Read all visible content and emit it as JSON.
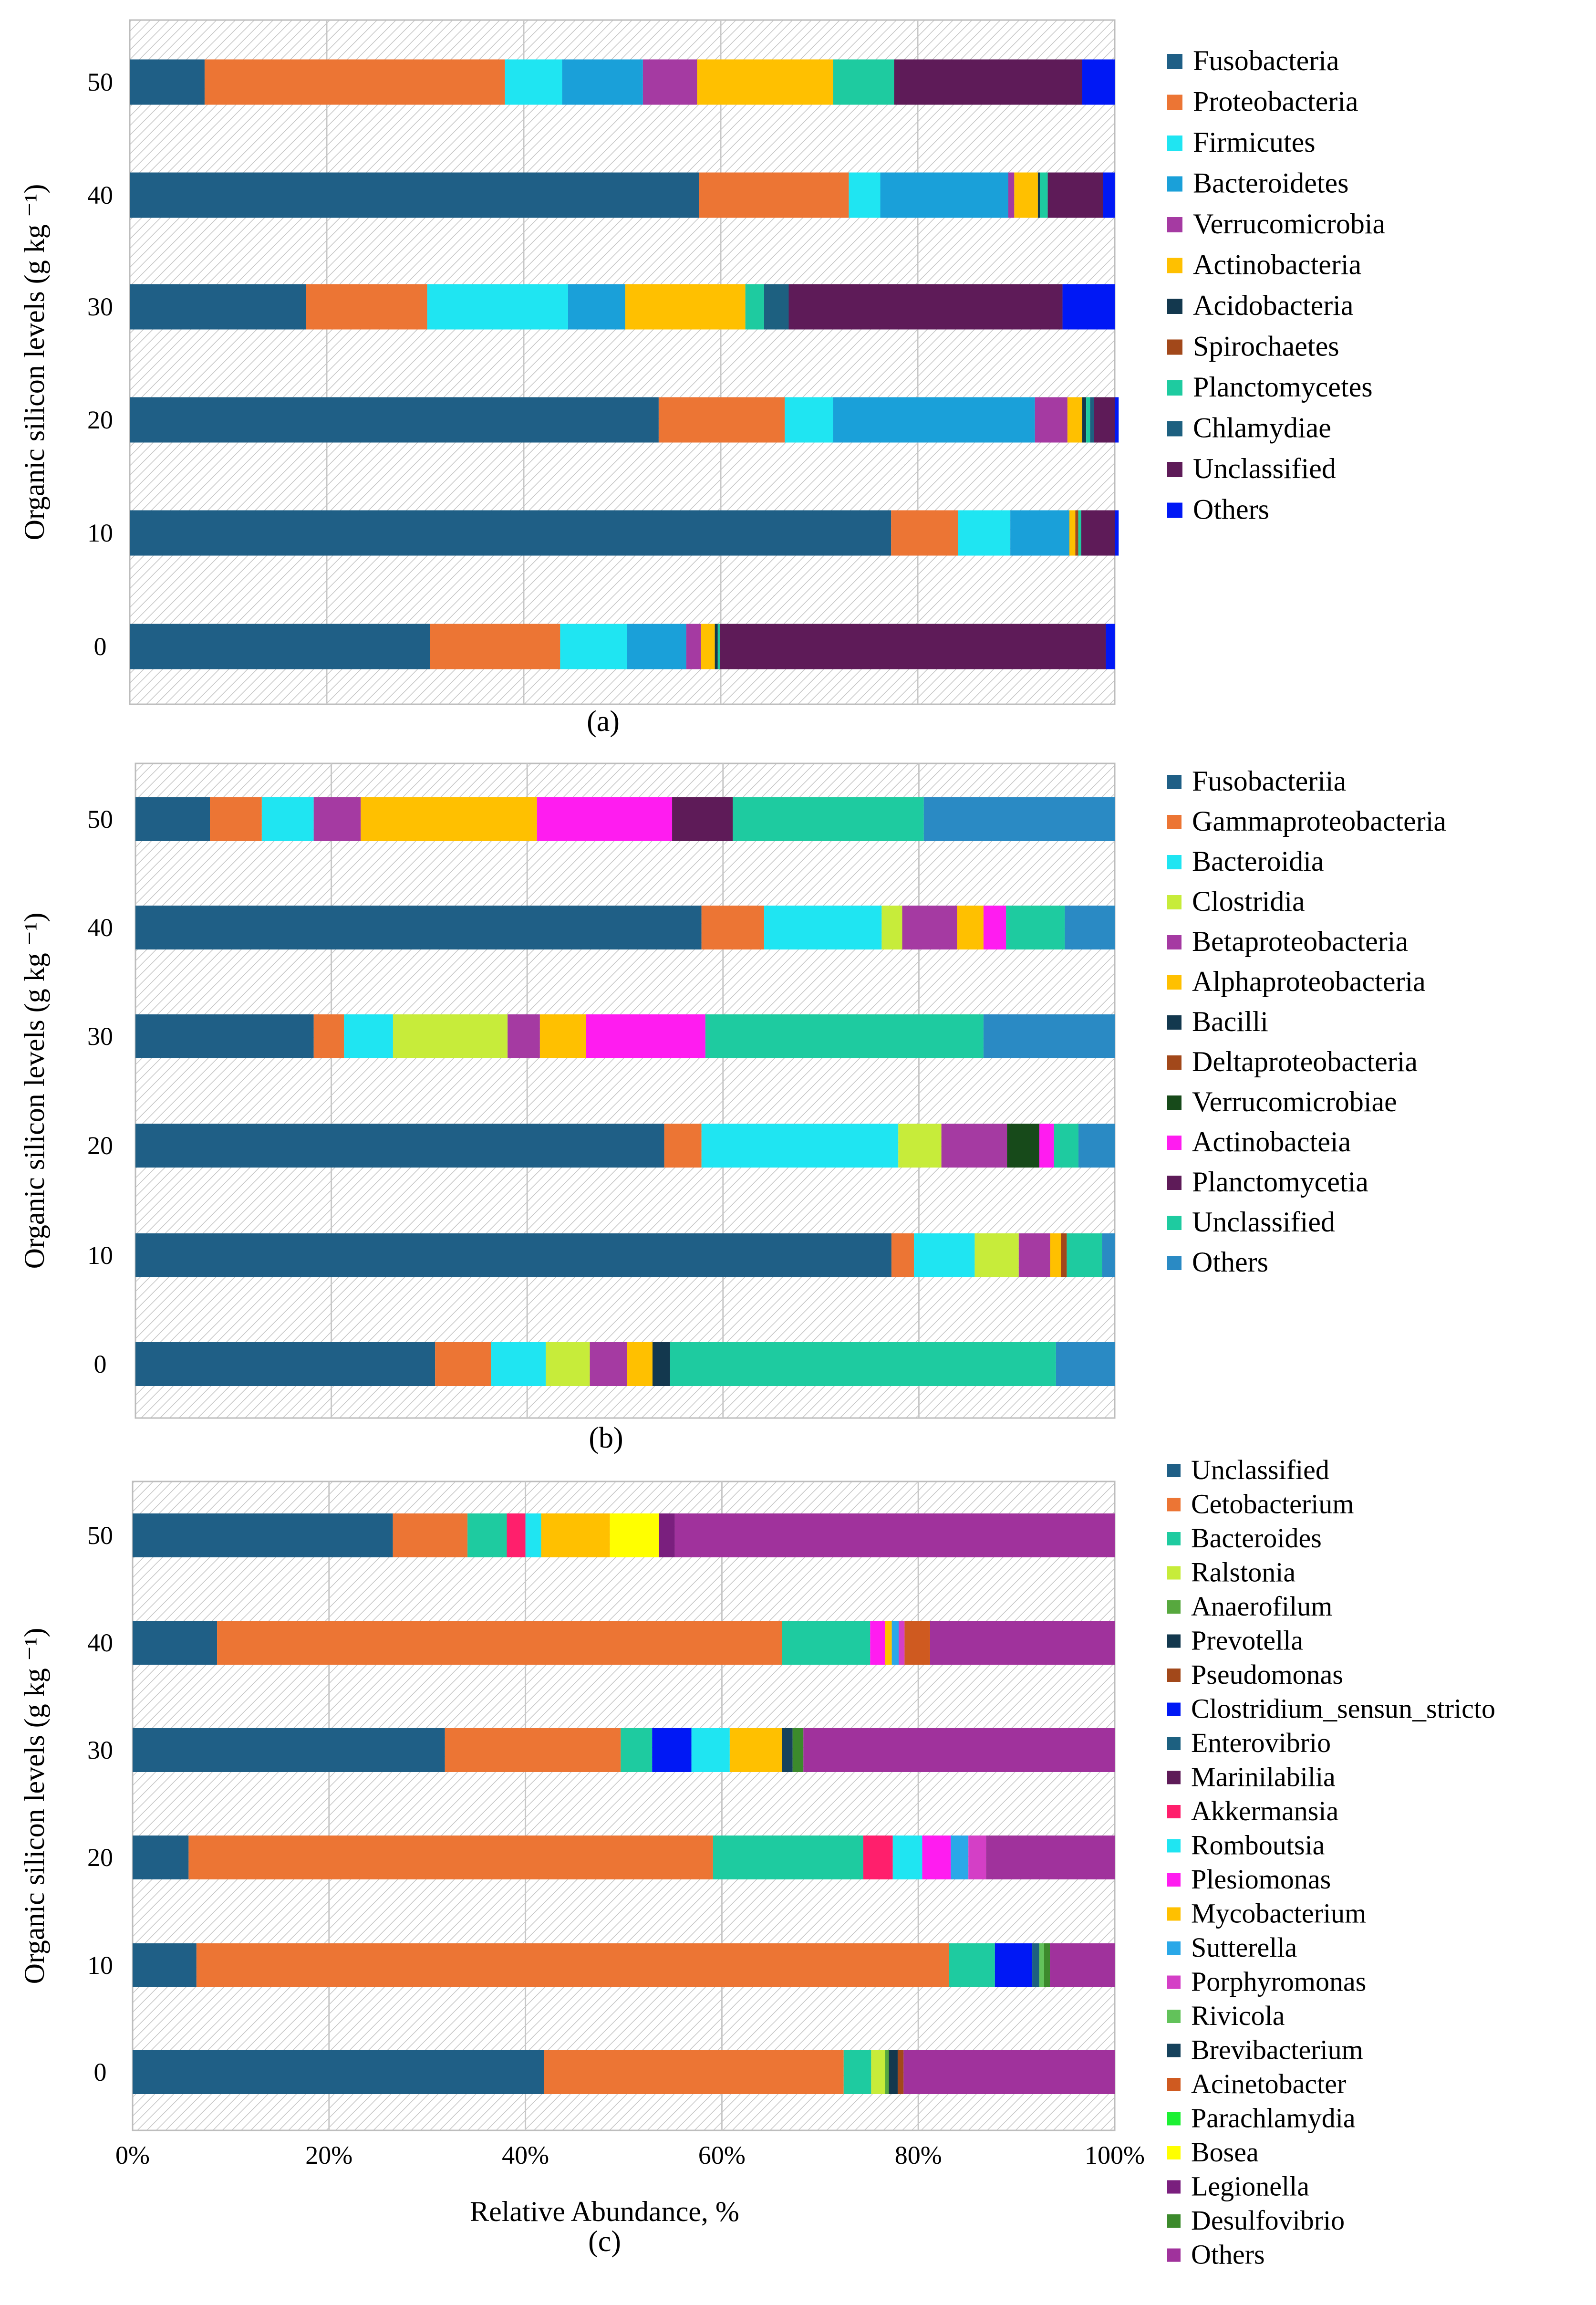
{
  "colors": {
    "Fusobacteria": "#1F5F86",
    "Proteobacteria": "#EC7534",
    "Firmicutes": "#1FE5F2",
    "Bacteroidetes": "#1AA0D9",
    "Verrucomicrobia": "#A53AA2",
    "Actinobacteria": "#FFC000",
    "Acidobacteria": "#13384E",
    "Spirochaetes": "#A2481A",
    "Planctomycetes": "#1ECBA0",
    "Chlamydiae": "#1D6080",
    "Unclassified_dark": "#5E1B58",
    "Others_blue": "#0018F5",
    "Fusobacteriia": "#1F5F86",
    "Gammaproteobacteria": "#EC7534",
    "Bacteroidia": "#1FE5F2",
    "Clostridia": "#C7EC3A",
    "Betaproteobacteria": "#A53AA2",
    "Alphaproteobacteria": "#FFC000",
    "Bacilli": "#13384E",
    "Deltaproteobacteria": "#A2481A",
    "Verrucomicrobiae": "#174A1A",
    "Actinobacteia": "#FF1CF0",
    "Planctomycetia": "#5E1B58",
    "Unclassified_teal": "#1ECBA0",
    "Others_steel": "#2A8AC4",
    "Unclassified_genus": "#1F5F86",
    "Cetobacterium": "#EC7534",
    "Bacteroides": "#1ECBA0",
    "Ralstonia": "#C7EC3A",
    "Anaerofilum": "#57A83E",
    "Prevotella": "#13384E",
    "Pseudomonas": "#A2481A",
    "Clostridium_sensun_stricto": "#0018F5",
    "Enterovibrio": "#1D6080",
    "Marinilabilia": "#5E1B58",
    "Akkermansia": "#FF1F6C",
    "Romboutsia": "#1FE5F2",
    "Plesiomonas": "#FF1CF0",
    "Mycobacterium": "#FFC000",
    "Sutterella": "#2AA8E8",
    "Porphyromonas": "#D43FC6",
    "Rivicola": "#62C25A",
    "Brevibacterium": "#16425C",
    "Acinetobacter": "#CF5A20",
    "Parachlamydia": "#1CF033",
    "Bosea": "#FFFF00",
    "Legionella": "#7A1F7E",
    "Desulfovibrio": "#3C8A2C",
    "Others_purple": "#A0329C"
  },
  "y_axis_title": "Organic silicon levels (g kg ⁻¹)",
  "chart_data": [
    {
      "type": "bar",
      "orientation": "horizontal",
      "stacked": true,
      "panel_label": "(a)",
      "categories": [
        "50",
        "40",
        "30",
        "20",
        "10",
        "0"
      ],
      "xlim": [
        0,
        100
      ],
      "ylabel": "Organic silicon levels (g kg ⁻¹)",
      "series": [
        {
          "name": "Fusobacteria",
          "color_key": "Fusobacteria",
          "values": [
            7.6,
            57.8,
            17.9,
            53.7,
            77.3,
            30.5
          ]
        },
        {
          "name": "Proteobacteria",
          "color_key": "Proteobacteria",
          "values": [
            30.5,
            15.2,
            12.3,
            12.8,
            6.8,
            13.2
          ]
        },
        {
          "name": "Firmicutes",
          "color_key": "Firmicutes",
          "values": [
            5.8,
            3.2,
            14.3,
            4.9,
            5.3,
            6.8
          ]
        },
        {
          "name": "Bacteroidetes",
          "color_key": "Bacteroidetes",
          "values": [
            8.2,
            13.0,
            5.8,
            20.5,
            6.0,
            6.0
          ]
        },
        {
          "name": "Verrucomicrobia",
          "color_key": "Verrucomicrobia",
          "values": [
            5.5,
            0.6,
            0.0,
            3.3,
            0.0,
            1.5
          ]
        },
        {
          "name": "Actinobacteria",
          "color_key": "Actinobacteria",
          "values": [
            13.8,
            2.4,
            12.2,
            1.5,
            0.6,
            1.4
          ]
        },
        {
          "name": "Acidobacteria",
          "color_key": "Acidobacteria",
          "values": [
            0.0,
            0.2,
            0.0,
            0.4,
            0.0,
            0.3
          ]
        },
        {
          "name": "Spirochaetes",
          "color_key": "Spirochaetes",
          "values": [
            0.0,
            0.0,
            0.0,
            0.0,
            0.3,
            0.0
          ]
        },
        {
          "name": "Planctomycetes",
          "color_key": "Planctomycetes",
          "values": [
            6.2,
            0.8,
            1.9,
            0.4,
            0.3,
            0.2
          ]
        },
        {
          "name": "Chlamydiae",
          "color_key": "Chlamydiae",
          "values": [
            0.0,
            0.0,
            2.5,
            0.4,
            0.0,
            0.0
          ]
        },
        {
          "name": "Unclassified",
          "color_key": "Unclassified_dark",
          "values": [
            19.1,
            5.6,
            27.8,
            2.1,
            3.4,
            39.2
          ]
        },
        {
          "name": "Others",
          "color_key": "Others_blue",
          "values": [
            3.3,
            1.2,
            5.3,
            0.4,
            0.4,
            0.9
          ]
        }
      ]
    },
    {
      "type": "bar",
      "orientation": "horizontal",
      "stacked": true,
      "panel_label": "(b)",
      "categories": [
        "50",
        "40",
        "30",
        "20",
        "10",
        "0"
      ],
      "xlim": [
        0,
        100
      ],
      "ylabel": "Organic silicon levels (g kg ⁻¹)",
      "series": [
        {
          "name": "Fusobacteriia",
          "color_key": "Fusobacteriia",
          "values": [
            7.6,
            57.8,
            18.2,
            54.0,
            77.2,
            30.6
          ]
        },
        {
          "name": "Gammaproteobacteria",
          "color_key": "Gammaproteobacteria",
          "values": [
            5.3,
            6.4,
            3.1,
            3.8,
            2.3,
            5.7
          ]
        },
        {
          "name": "Bacteroidia",
          "color_key": "Bacteroidia",
          "values": [
            5.3,
            12.0,
            5.0,
            20.1,
            6.2,
            5.6
          ]
        },
        {
          "name": "Clostridia",
          "color_key": "Clostridia",
          "values": [
            0.0,
            2.1,
            11.7,
            4.4,
            4.5,
            4.5
          ]
        },
        {
          "name": "Betaproteobacteria",
          "color_key": "Betaproteobacteria",
          "values": [
            4.8,
            5.6,
            3.3,
            6.7,
            3.2,
            3.8
          ]
        },
        {
          "name": "Alphaproteobacteria",
          "color_key": "Alphaproteobacteria",
          "values": [
            18.0,
            2.7,
            4.7,
            0.0,
            1.1,
            2.6
          ]
        },
        {
          "name": "Bacilli",
          "color_key": "Bacilli",
          "values": [
            0.0,
            0.0,
            0.0,
            0.0,
            0.0,
            1.8
          ]
        },
        {
          "name": "Deltaproteobacteria",
          "color_key": "Deltaproteobacteria",
          "values": [
            0.0,
            0.0,
            0.0,
            0.0,
            0.6,
            0.0
          ]
        },
        {
          "name": "Verrucomicrobiae",
          "color_key": "Verrucomicrobiae",
          "values": [
            0.0,
            0.0,
            0.0,
            3.3,
            0.0,
            0.0
          ]
        },
        {
          "name": "Actinobacteia",
          "color_key": "Actinobacteia",
          "values": [
            13.8,
            2.3,
            12.2,
            1.5,
            0.0,
            0.0
          ]
        },
        {
          "name": "Planctomycetia",
          "color_key": "Planctomycetia",
          "values": [
            6.2,
            0.0,
            0.0,
            0.0,
            0.0,
            0.0
          ]
        },
        {
          "name": "Unclassified",
          "color_key": "Unclassified_teal",
          "values": [
            19.5,
            6.0,
            28.4,
            2.5,
            3.6,
            39.4
          ]
        },
        {
          "name": "Others",
          "color_key": "Others_steel",
          "values": [
            19.5,
            5.1,
            13.4,
            3.7,
            1.3,
            6.0
          ]
        }
      ]
    },
    {
      "type": "bar",
      "orientation": "horizontal",
      "stacked": true,
      "panel_label": "(c)",
      "categories": [
        "50",
        "40",
        "30",
        "20",
        "10",
        "0"
      ],
      "xlim": [
        0,
        100
      ],
      "xticks": [
        "0%",
        "20%",
        "40%",
        "60%",
        "80%",
        "100%"
      ],
      "xlabel": "Relative Abundance, %",
      "ylabel": "Organic silicon levels (g kg ⁻¹)",
      "series": [
        {
          "name": "Unclassified",
          "color_key": "Unclassified_genus",
          "values": [
            26.5,
            8.6,
            31.8,
            5.7,
            6.5,
            41.9
          ]
        },
        {
          "name": "Cetobacterium",
          "color_key": "Cetobacterium",
          "values": [
            7.6,
            57.5,
            17.9,
            53.4,
            76.6,
            30.5
          ]
        },
        {
          "name": "Bacteroides",
          "color_key": "Bacteroides",
          "values": [
            4.0,
            9.0,
            3.2,
            15.3,
            4.7,
            2.8
          ]
        },
        {
          "name": "Ralstonia",
          "color_key": "Ralstonia",
          "values": [
            0.0,
            0.0,
            0.0,
            0.0,
            0.0,
            1.4
          ]
        },
        {
          "name": "Anaerofilum",
          "color_key": "Anaerofilum",
          "values": [
            0.0,
            0.0,
            0.0,
            0.0,
            0.0,
            0.4
          ]
        },
        {
          "name": "Prevotella",
          "color_key": "Prevotella",
          "values": [
            0.0,
            0.0,
            0.0,
            0.0,
            0.0,
            0.9
          ]
        },
        {
          "name": "Pseudomonas",
          "color_key": "Pseudomonas",
          "values": [
            0.0,
            0.0,
            0.0,
            0.0,
            0.0,
            0.6
          ]
        },
        {
          "name": "Clostridium_sensun_stricto",
          "color_key": "Clostridium_sensun_stricto",
          "values": [
            0.0,
            0.0,
            4.0,
            0.0,
            3.8,
            0.0
          ]
        },
        {
          "name": "Enterovibrio",
          "color_key": "Enterovibrio",
          "values": [
            0.0,
            0.0,
            0.0,
            0.0,
            0.7,
            0.0
          ]
        },
        {
          "name": "Marinilabilia",
          "color_key": "Marinilabilia",
          "values": [
            0.0,
            0.0,
            0.0,
            0.0,
            0.0,
            0.0
          ]
        },
        {
          "name": "Akkermansia",
          "color_key": "Akkermansia",
          "values": [
            1.9,
            0.0,
            0.0,
            3.0,
            0.0,
            0.0
          ]
        },
        {
          "name": "Romboutsia",
          "color_key": "Romboutsia",
          "values": [
            1.6,
            0.0,
            3.9,
            3.0,
            0.0,
            0.0
          ]
        },
        {
          "name": "Plesiomonas",
          "color_key": "Plesiomonas",
          "values": [
            0.0,
            1.5,
            0.0,
            2.9,
            0.0,
            0.0
          ]
        },
        {
          "name": "Mycobacterium",
          "color_key": "Mycobacterium",
          "values": [
            7.0,
            0.7,
            5.3,
            0.0,
            0.0,
            0.0
          ]
        },
        {
          "name": "Sutterella",
          "color_key": "Sutterella",
          "values": [
            0.0,
            0.7,
            0.0,
            1.8,
            0.0,
            0.0
          ]
        },
        {
          "name": "Porphyromonas",
          "color_key": "Porphyromonas",
          "values": [
            0.0,
            0.6,
            0.0,
            1.8,
            0.0,
            0.0
          ]
        },
        {
          "name": "Rivicola",
          "color_key": "Rivicola",
          "values": [
            0.0,
            0.0,
            0.0,
            0.0,
            0.5,
            0.0
          ]
        },
        {
          "name": "Brevibacterium",
          "color_key": "Brevibacterium",
          "values": [
            0.0,
            0.0,
            1.1,
            0.0,
            0.0,
            0.0
          ]
        },
        {
          "name": "Acinetobacter",
          "color_key": "Acinetobacter",
          "values": [
            0.0,
            2.6,
            0.0,
            0.0,
            0.0,
            0.0
          ]
        },
        {
          "name": "Parachlamydia",
          "color_key": "Parachlamydia",
          "values": [
            0.0,
            0.0,
            0.0,
            0.0,
            0.0,
            0.0
          ]
        },
        {
          "name": "Bosea",
          "color_key": "Bosea",
          "values": [
            5.0,
            0.0,
            0.0,
            0.0,
            0.0,
            0.0
          ]
        },
        {
          "name": "Legionella",
          "color_key": "Legionella",
          "values": [
            1.6,
            0.0,
            0.0,
            0.0,
            0.0,
            0.0
          ]
        },
        {
          "name": "Desulfovibrio",
          "color_key": "Desulfovibrio",
          "values": [
            0.0,
            0.0,
            1.1,
            0.0,
            0.6,
            0.0
          ]
        },
        {
          "name": "Others",
          "color_key": "Others_purple",
          "values": [
            44.8,
            18.8,
            31.7,
            13.1,
            6.6,
            21.5
          ]
        }
      ]
    }
  ]
}
